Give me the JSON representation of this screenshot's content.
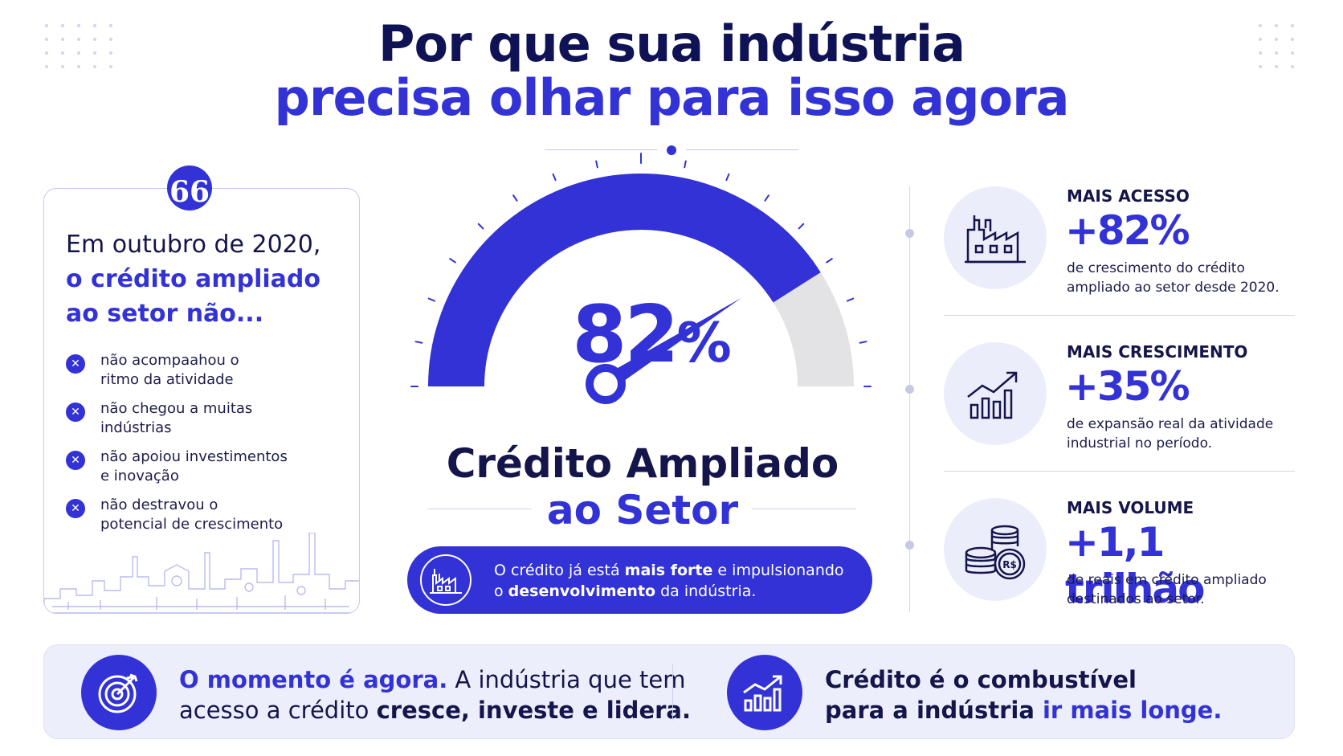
{
  "title": {
    "line1": "Por que sua indústria",
    "line2": "precisa olhar para isso agora"
  },
  "quote_badge": {
    "symbol": "66",
    "icon": "quote-icon"
  },
  "left_card": {
    "heading_plain": "Em outubro de 2020,",
    "heading_highlight_1": "o crédito ampliado",
    "heading_highlight_2": "ao setor não...",
    "items": [
      {
        "line1": "não acompaahou o",
        "line2": "ritmo da atividade"
      },
      {
        "line1": "não chegou a muitas",
        "line2": "indústrias"
      },
      {
        "line1": "não apoiou investimentos",
        "line2": "e inovação"
      },
      {
        "line1": "não destravou o",
        "line2": "potencial de crescimento"
      }
    ],
    "item_icon": "x-circle-icon"
  },
  "gauge": {
    "value": 82,
    "value_number": "82",
    "value_unit": "%",
    "title_line1": "Crédito Ampliado",
    "title_line2": "ao Setor",
    "fill_color": "#3232d6",
    "track_color": "#e3e3e6"
  },
  "pill": {
    "icon": "factory-icon",
    "text_1": "O crédito já está ",
    "text_bold_1": "mais forte",
    "text_2": " e impulsionando",
    "text_3": "o ",
    "text_bold_2": "desenvolvimento",
    "text_4": " da indústria."
  },
  "stats": [
    {
      "label": "MAIS ACESSO",
      "value": "+82%",
      "desc_1": "de crescimento do crédito",
      "desc_2": "ampliado ao setor desde 2020.",
      "icon": "factory-icon"
    },
    {
      "label": "MAIS CRESCIMENTO",
      "value": "+35%",
      "desc_1": "de expansão real da atividade",
      "desc_2": "industrial no período.",
      "icon": "growth-chart-icon"
    },
    {
      "label": "MAIS VOLUME",
      "value": "+1,1 trilhão",
      "desc_1": "de reais em crédito ampliado",
      "desc_2": "destinados ao setor.",
      "icon": "coins-icon"
    }
  ],
  "coin_symbol": "R$",
  "banner": {
    "left": {
      "icon": "target-icon",
      "blue": "O momento é agora.",
      "plain_1": " A indústria que tem",
      "plain_2": "acesso a crédito ",
      "bold": "cresce, investe e lidera."
    },
    "right": {
      "icon": "growth-chart-icon",
      "bold_1": "Crédito é o combustível",
      "bold_2": "para a indústria ",
      "blue": "ir mais longe."
    }
  },
  "colors": {
    "primary": "#3232d6",
    "navy": "#14154a",
    "light": "#eceefb"
  }
}
